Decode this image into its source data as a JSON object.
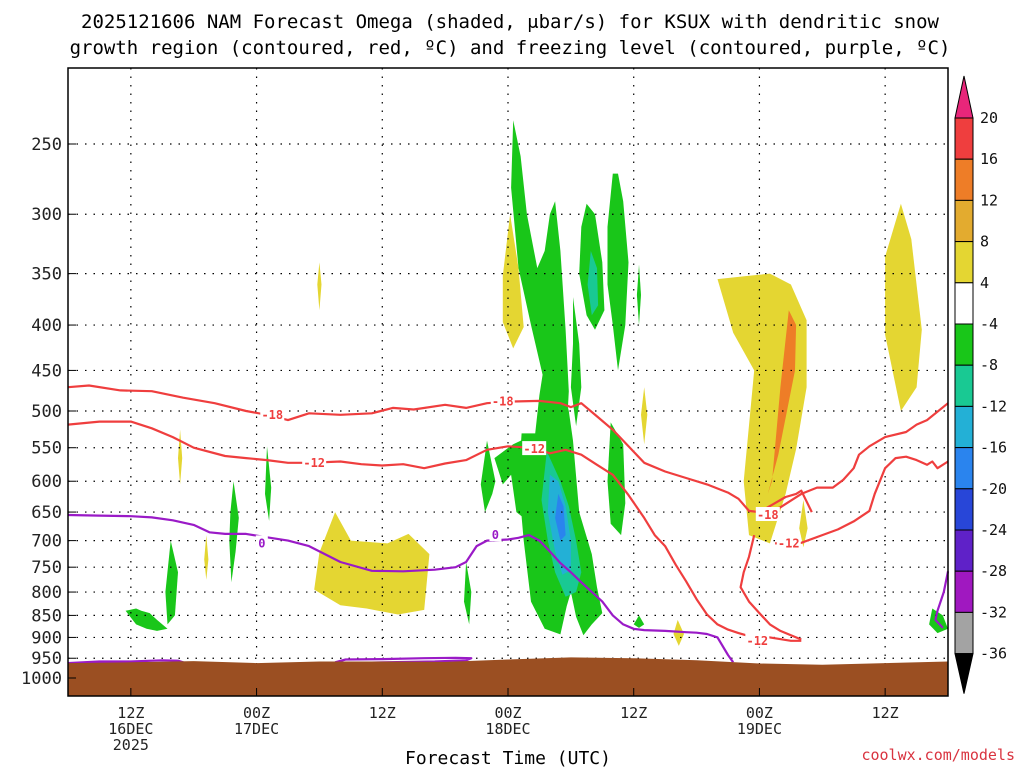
{
  "chart_data": {
    "type": "heatmap",
    "title_line1": "2025121606 NAM Forecast Omega (shaded, μbar/s) for KSUX with dendritic snow",
    "title_line2": "growth region (contoured, red, ºC) and freezing level (contoured, purple, ºC)",
    "xlabel": "Forecast Time (UTC)",
    "credit": "coolwx.com/models",
    "y_axis": {
      "ticks": [
        250,
        300,
        350,
        400,
        450,
        500,
        550,
        600,
        650,
        700,
        750,
        800,
        850,
        900,
        950,
        1000
      ],
      "scale": "log pressure (mb), inverted",
      "grid": true
    },
    "x_axis": {
      "ticks": [
        {
          "hour": 6,
          "line1": "12Z",
          "line2": "16DEC",
          "line3": "2025"
        },
        {
          "hour": 18,
          "line1": "00Z",
          "line2": "17DEC",
          "line3": ""
        },
        {
          "hour": 30,
          "line1": "12Z",
          "line2": "",
          "line3": ""
        },
        {
          "hour": 42,
          "line1": "00Z",
          "line2": "18DEC",
          "line3": ""
        },
        {
          "hour": 54,
          "line1": "12Z",
          "line2": "",
          "line3": ""
        },
        {
          "hour": 66,
          "line1": "00Z",
          "line2": "19DEC",
          "line3": ""
        },
        {
          "hour": 78,
          "line1": "12Z",
          "line2": "",
          "line3": ""
        }
      ],
      "range_hours": [
        0,
        84
      ],
      "grid": true
    },
    "colorbar": {
      "labels": [
        "20",
        "16",
        "12",
        "8",
        "4",
        "-4",
        "-8",
        "-12",
        "-16",
        "-20",
        "-24",
        "-28",
        "-32",
        "-36"
      ],
      "colors": [
        "#e8267a",
        "#ef3e3e",
        "#ee7d27",
        "#e3ab2f",
        "#e4d632",
        "#ffffff",
        "#19c619",
        "#19c993",
        "#23b0d6",
        "#2a84ee",
        "#2846d8",
        "#5f21c8",
        "#a018c0",
        "#a3a3a3",
        "#000000"
      ]
    },
    "contour_labels": {
      "red": [
        {
          "text": "-18",
          "hour": 19.5,
          "p": 505
        },
        {
          "text": "-12",
          "hour": 23.5,
          "p": 572
        },
        {
          "text": "-18",
          "hour": 41.5,
          "p": 488
        },
        {
          "text": "-12",
          "hour": 44.5,
          "p": 552
        },
        {
          "text": "-18",
          "hour": 66.8,
          "p": 655
        },
        {
          "text": "-12",
          "hour": 68.8,
          "p": 705
        },
        {
          "text": "-12",
          "hour": 65.8,
          "p": 908
        }
      ],
      "purple": [
        {
          "text": "0",
          "hour": 18.5,
          "p": 705
        },
        {
          "text": "0",
          "hour": 40.8,
          "p": 690
        }
      ]
    },
    "ground_color": "#9b4f22",
    "snow_region_color": "#ef3e3e",
    "freezing_level_color": "#9a1ac7"
  }
}
